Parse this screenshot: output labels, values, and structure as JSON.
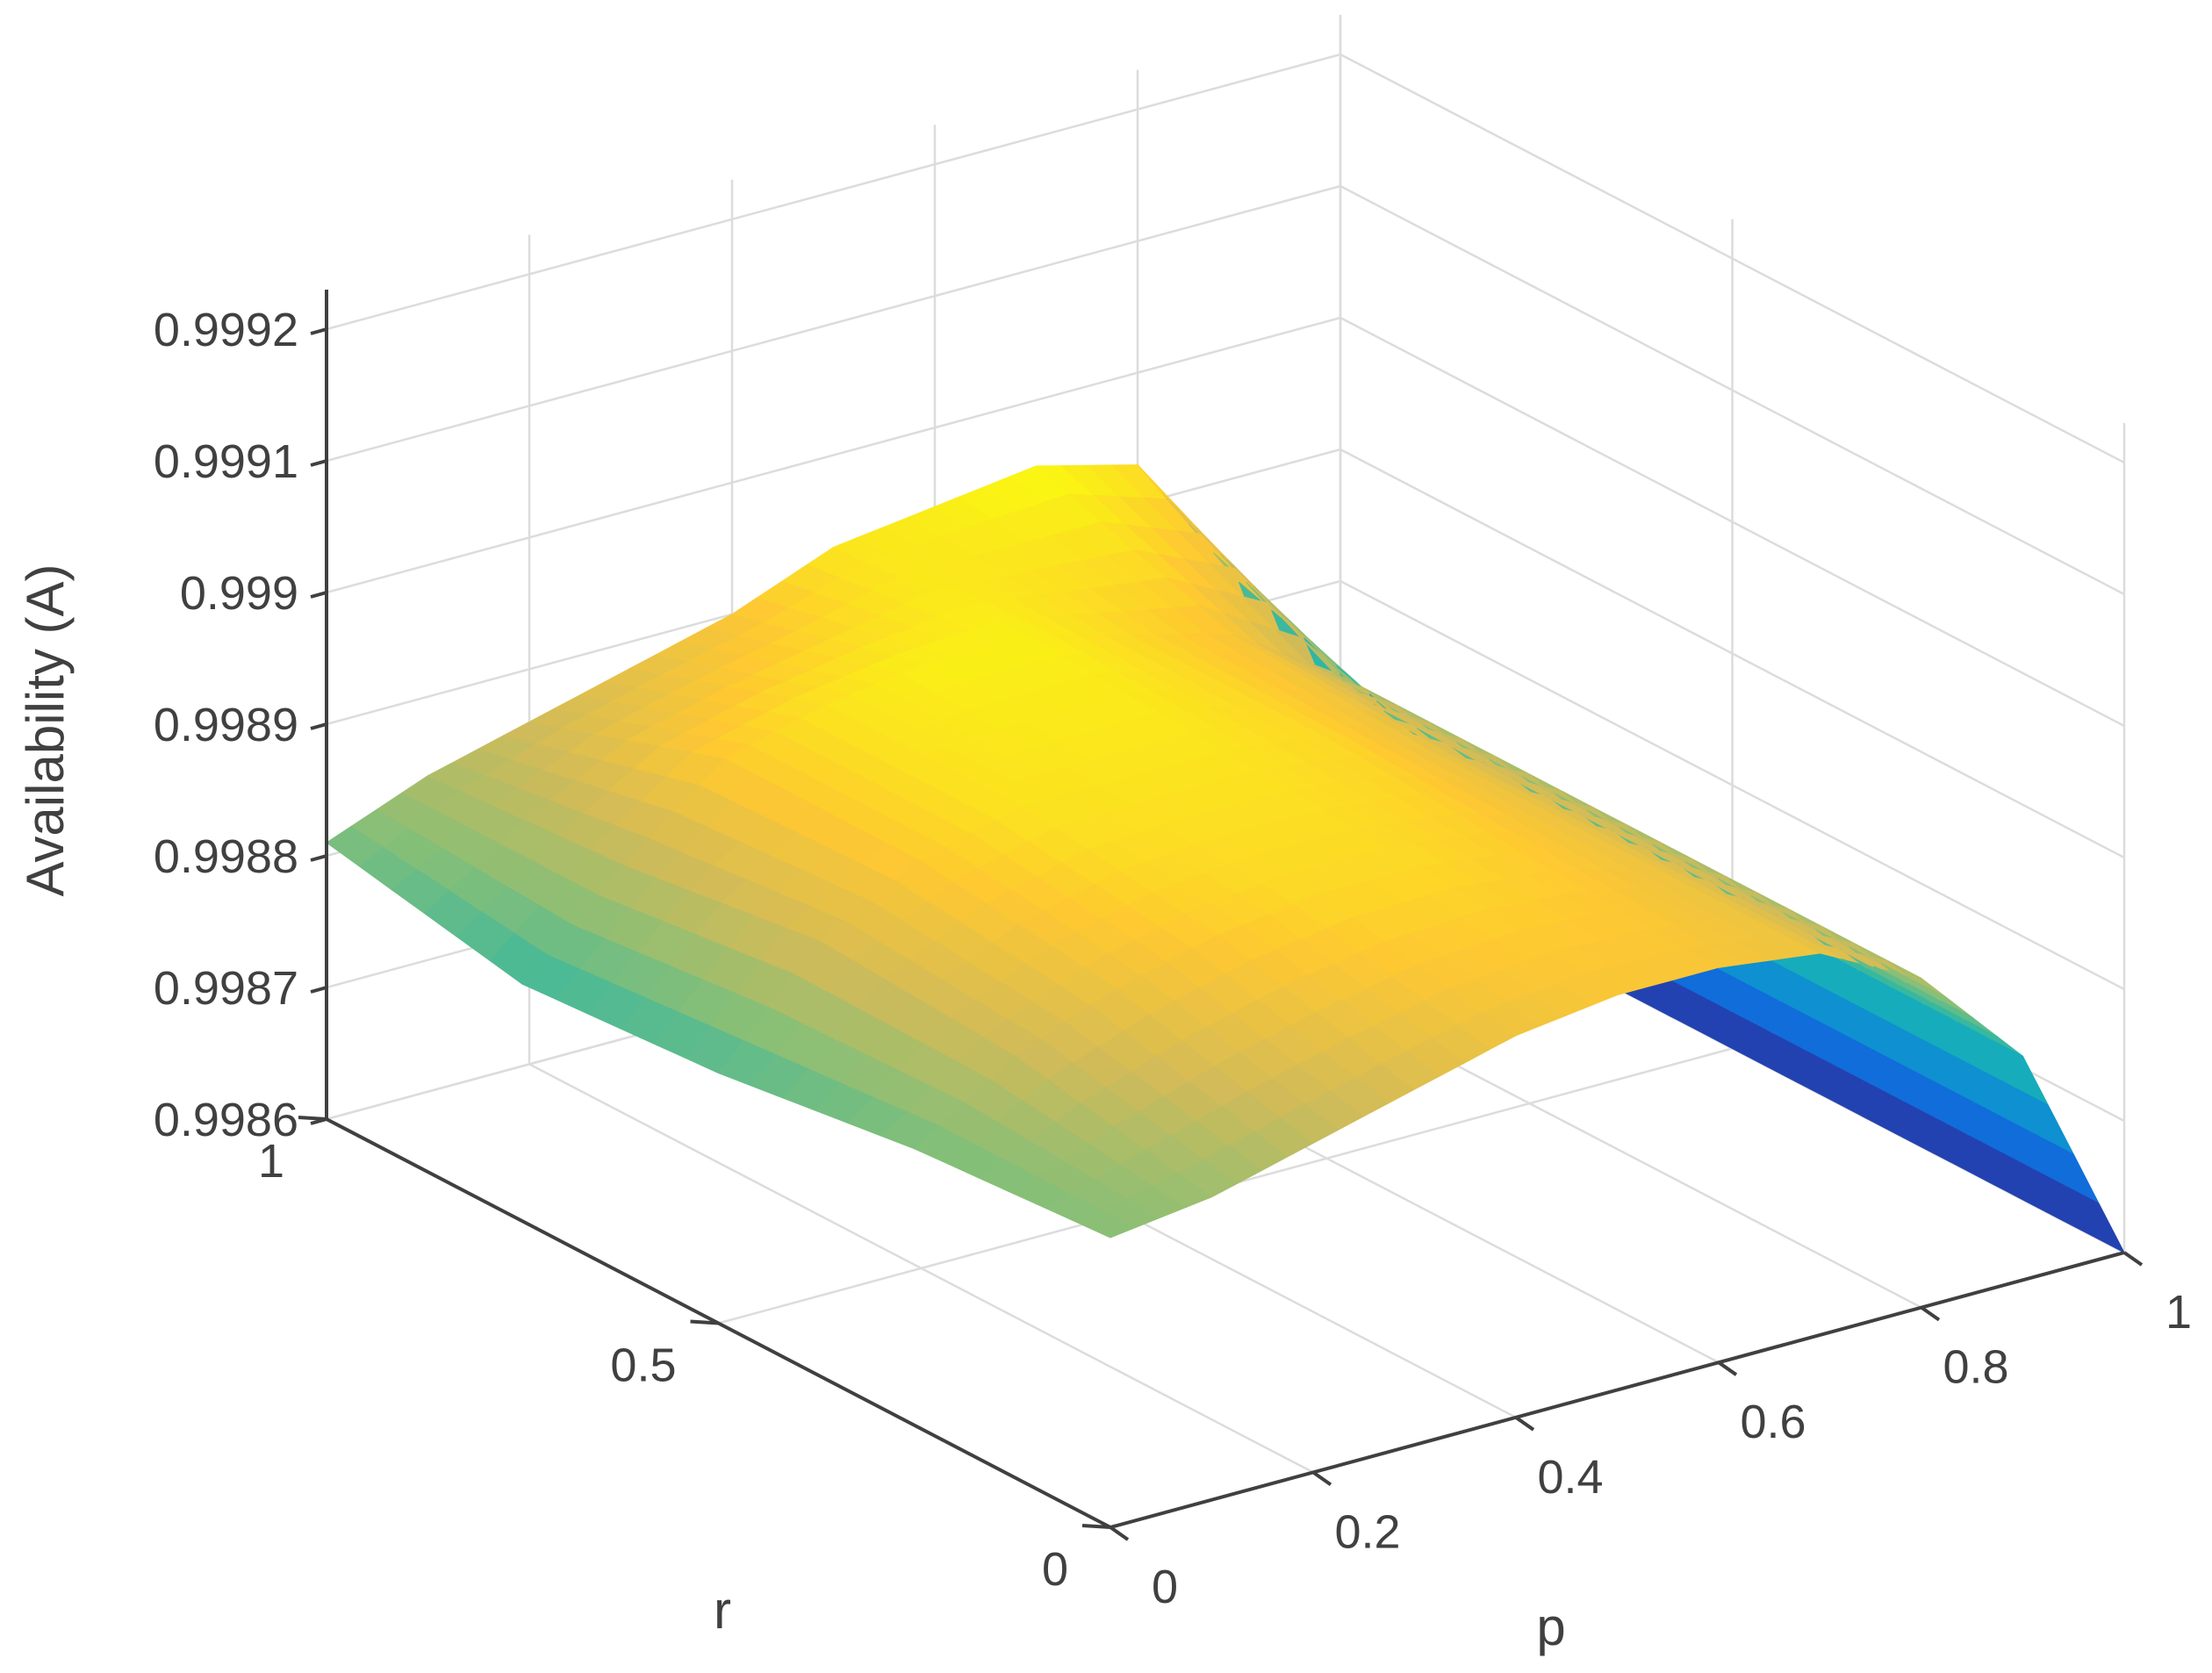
{
  "chart_data": {
    "type": "surface",
    "xlabel": "p",
    "ylabel": "r",
    "zlabel": "Availability (A)",
    "x_ticks": [
      "0",
      "0.2",
      "0.4",
      "0.6",
      "0.8",
      "1"
    ],
    "y_ticks": [
      "0",
      "0.5",
      "1"
    ],
    "z_ticks": [
      "0.9986",
      "0.9987",
      "0.9988",
      "0.9989",
      "0.999",
      "0.9991",
      "0.9992"
    ],
    "xlim": [
      0,
      1
    ],
    "ylim": [
      0,
      1
    ],
    "zlim": [
      0.9986,
      0.99923
    ],
    "grid": true,
    "colormap": "parula",
    "colormap_colors": [
      "#352a87",
      "#0f5cdd",
      "#1481d6",
      "#06a4ca",
      "#2eb7a4",
      "#87bf77",
      "#d1bb59",
      "#fec832",
      "#f9fb0e"
    ],
    "surface_samples": {
      "note_rows": "rows: r values; columns: p values",
      "p": [
        0,
        0.1,
        0.2,
        0.3,
        0.4,
        0.5,
        0.6,
        0.7,
        0.8,
        0.9,
        1
      ],
      "r": [
        0,
        0.25,
        0.5,
        0.75,
        1
      ],
      "A": [
        [
          0.99882,
          0.99883,
          0.99885,
          0.99887,
          0.99889,
          0.9989,
          0.9989,
          0.99889,
          0.99885,
          0.99877,
          0.9986
        ],
        [
          0.99881,
          0.99886,
          0.99889,
          0.99891,
          0.99892,
          0.99892,
          0.99891,
          0.99889,
          0.99885,
          0.99877,
          0.9986
        ],
        [
          0.99879,
          0.99887,
          0.99891,
          0.99893,
          0.99893,
          0.99893,
          0.99892,
          0.99889,
          0.99885,
          0.99877,
          0.9986
        ],
        [
          0.99878,
          0.99885,
          0.99891,
          0.99893,
          0.99894,
          0.99894,
          0.99892,
          0.9989,
          0.99885,
          0.99877,
          0.9986
        ],
        [
          0.99881,
          0.99884,
          0.99886,
          0.99888,
          0.9989,
          0.99893,
          0.99894,
          0.99895,
          0.99893,
          0.99882,
          0.9986
        ]
      ]
    }
  }
}
